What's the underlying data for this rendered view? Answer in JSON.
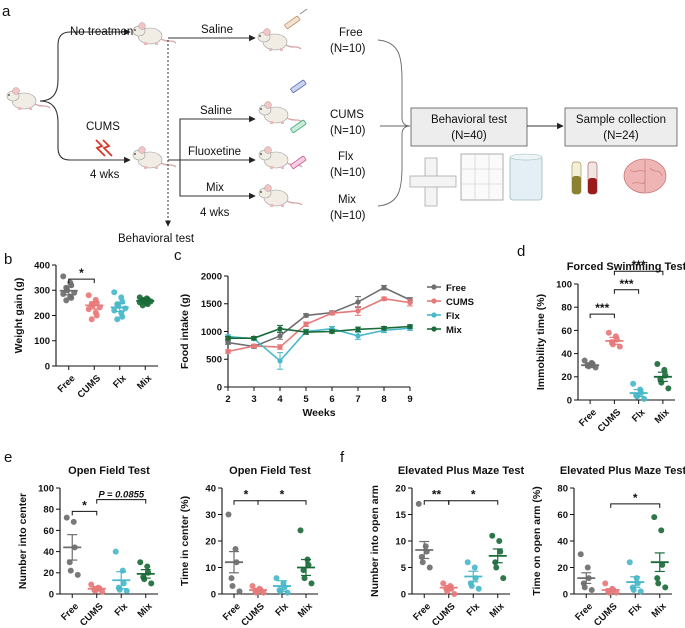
{
  "colors": {
    "Free": "#6e6e6e",
    "CUMS": "#e8797a",
    "Flx": "#49b8c9",
    "Mix": "#1b6b3a"
  },
  "panel_a": {
    "letter": "a",
    "no_treatment": "No treatment",
    "saline_top": "Saline",
    "cums": "CUMS",
    "duration1": "4 wks",
    "saline2": "Saline",
    "fluoxetine": "Fluoxetine",
    "mix": "Mix",
    "duration2": "4 wks",
    "behavioral_test_label": "Behavioral test",
    "groups": [
      {
        "name": "Free",
        "n": "(N=10)"
      },
      {
        "name": "CUMS",
        "n": "(N=10)"
      },
      {
        "name": "Flx",
        "n": "(N=10)"
      },
      {
        "name": "Mix",
        "n": "(N=10)"
      }
    ],
    "box1": {
      "title": "Behavioral test",
      "n": "(N=40)"
    },
    "box2": {
      "title": "Sample collection",
      "n": "(N=24)"
    }
  },
  "chart_data": [
    {
      "id": "b",
      "type": "scatter",
      "title": "",
      "ylabel": "Weight gain (g)",
      "categories": [
        "Free",
        "CUMS",
        "Flx",
        "Mix"
      ],
      "ylim": [
        0,
        400
      ],
      "yticks": [
        0,
        100,
        200,
        300,
        400
      ],
      "means": [
        298,
        240,
        232,
        258
      ],
      "sem": [
        16,
        14,
        16,
        8
      ],
      "points": [
        [
          355,
          330,
          320,
          310,
          300,
          290,
          285,
          275,
          270,
          260
        ],
        [
          280,
          262,
          250,
          245,
          240,
          232,
          225,
          212,
          200,
          185
        ],
        [
          292,
          272,
          255,
          245,
          238,
          228,
          220,
          210,
          195,
          185
        ],
        [
          272,
          268,
          264,
          262,
          258,
          256,
          252,
          250,
          245,
          240
        ]
      ],
      "significance": [
        {
          "from": 0,
          "to": 1,
          "label": "*"
        }
      ]
    },
    {
      "id": "c",
      "type": "line",
      "title": "",
      "xlabel": "Weeks",
      "ylabel": "Food intake (g)",
      "x": [
        2,
        3,
        4,
        5,
        6,
        7,
        8,
        9
      ],
      "xlim": [
        2,
        9
      ],
      "ylim": [
        0,
        2000
      ],
      "yticks": [
        0,
        500,
        1000,
        1500,
        2000
      ],
      "series": [
        {
          "name": "Free",
          "values": [
            800,
            730,
            920,
            1290,
            1340,
            1530,
            1790,
            1570
          ],
          "err": [
            30,
            30,
            60,
            30,
            30,
            100,
            40,
            40
          ]
        },
        {
          "name": "CUMS",
          "values": [
            640,
            740,
            720,
            1130,
            1330,
            1370,
            1590,
            1520
          ],
          "err": [
            30,
            30,
            40,
            40,
            30,
            80,
            30,
            60
          ]
        },
        {
          "name": "Flx",
          "values": [
            910,
            870,
            470,
            1000,
            1050,
            920,
            1020,
            1060
          ],
          "err": [
            30,
            30,
            150,
            40,
            40,
            60,
            40,
            40
          ]
        },
        {
          "name": "Mix",
          "values": [
            880,
            880,
            1050,
            990,
            1000,
            1040,
            1060,
            1090
          ],
          "err": [
            30,
            30,
            60,
            40,
            30,
            40,
            30,
            30
          ]
        }
      ]
    },
    {
      "id": "d",
      "type": "scatter",
      "title": "Forced Swimming Test",
      "ylabel": "Immobility time (%)",
      "categories": [
        "Free",
        "CUMS",
        "Flx",
        "Mix"
      ],
      "ylim": [
        0,
        100
      ],
      "yticks": [
        0,
        20,
        40,
        60,
        80,
        100
      ],
      "means": [
        30,
        51,
        6,
        20
      ],
      "sem": [
        2,
        3,
        3,
        4
      ],
      "points": [
        [
          34,
          32,
          31,
          30,
          29,
          28
        ],
        [
          58,
          55,
          52,
          50,
          48,
          46
        ],
        [
          14,
          9,
          6,
          4,
          3,
          1
        ],
        [
          31,
          26,
          21,
          18,
          15,
          10
        ]
      ],
      "significance": [
        {
          "from": 0,
          "to": 1,
          "label": "***"
        },
        {
          "from": 1,
          "to": 2,
          "label": "***"
        },
        {
          "from": 1,
          "to": 3,
          "label": "***"
        }
      ]
    },
    {
      "id": "e1",
      "type": "scatter",
      "title": "Open Field Test",
      "ylabel": "Number into center",
      "categories": [
        "Free",
        "CUMS",
        "Flx",
        "Mix"
      ],
      "ylim": [
        0,
        100
      ],
      "yticks": [
        0,
        20,
        40,
        60,
        80,
        100
      ],
      "means": [
        44,
        5,
        13,
        19
      ],
      "sem": [
        12,
        2,
        8,
        4
      ],
      "points": [
        [
          72,
          68,
          44,
          30,
          22,
          18
        ],
        [
          9,
          6,
          5,
          4,
          3,
          2
        ],
        [
          40,
          22,
          10,
          6,
          4,
          3
        ],
        [
          30,
          26,
          20,
          16,
          14,
          10
        ]
      ],
      "significance": [
        {
          "from": 0,
          "to": 1,
          "label": "*"
        },
        {
          "from": 1,
          "to": 3,
          "label": "P = 0.0855"
        }
      ]
    },
    {
      "id": "e2",
      "type": "scatter",
      "title": "Open Field Test",
      "ylabel": "Time in center (%)",
      "categories": [
        "Free",
        "CUMS",
        "Flx",
        "Mix"
      ],
      "ylim": [
        0,
        40
      ],
      "yticks": [
        0,
        10,
        20,
        30,
        40
      ],
      "means": [
        12,
        1.5,
        3,
        10
      ],
      "sem": [
        4,
        0.6,
        2,
        3
      ],
      "points": [
        [
          30,
          17,
          12,
          6,
          3,
          1
        ],
        [
          3,
          2,
          1.5,
          1,
          0.5,
          0.5
        ],
        [
          6,
          4,
          2.5,
          1.5,
          1,
          0.5
        ],
        [
          24,
          13,
          11,
          9,
          6,
          4
        ]
      ],
      "significance": [
        {
          "from": 0,
          "to": 1,
          "label": "*"
        },
        {
          "from": 1,
          "to": 3,
          "label": "*"
        }
      ]
    },
    {
      "id": "f1",
      "type": "scatter",
      "title": "Elevated Plus Maze Test",
      "ylabel": "Number into open arm",
      "categories": [
        "Free",
        "CUMS",
        "Flx",
        "Mix"
      ],
      "ylim": [
        0,
        20
      ],
      "yticks": [
        0,
        5,
        10,
        15,
        20
      ],
      "means": [
        8.3,
        1.2,
        3.3,
        7.2
      ],
      "sem": [
        1.6,
        0.4,
        1,
        1.3
      ],
      "points": [
        [
          17,
          9,
          8,
          7,
          6,
          5
        ],
        [
          2,
          1.5,
          1,
          1,
          0.5,
          0
        ],
        [
          6,
          5,
          3,
          2,
          1.5,
          1
        ],
        [
          11,
          10,
          8,
          6,
          5,
          3
        ]
      ],
      "significance": [
        {
          "from": 0,
          "to": 1,
          "label": "**"
        },
        {
          "from": 1,
          "to": 3,
          "label": "*"
        }
      ]
    },
    {
      "id": "f2",
      "type": "scatter",
      "title": "Elevated Plus Maze Test",
      "ylabel": "Time on open arm (%)",
      "categories": [
        "Free",
        "CUMS",
        "Flx",
        "Mix"
      ],
      "ylim": [
        0,
        80
      ],
      "yticks": [
        0,
        20,
        40,
        60,
        80
      ],
      "means": [
        12,
        3,
        9,
        24
      ],
      "sem": [
        4,
        1,
        4,
        7
      ],
      "points": [
        [
          30,
          20,
          12,
          8,
          5,
          3
        ],
        [
          8,
          4,
          3,
          2,
          1,
          1
        ],
        [
          24,
          12,
          8,
          5,
          3,
          2
        ],
        [
          58,
          48,
          22,
          12,
          8,
          5
        ]
      ],
      "significance": [
        {
          "from": 1,
          "to": 3,
          "label": "*"
        }
      ]
    }
  ],
  "panel_letters": {
    "b": "b",
    "c": "c",
    "d": "d",
    "e": "e",
    "f": "f"
  }
}
